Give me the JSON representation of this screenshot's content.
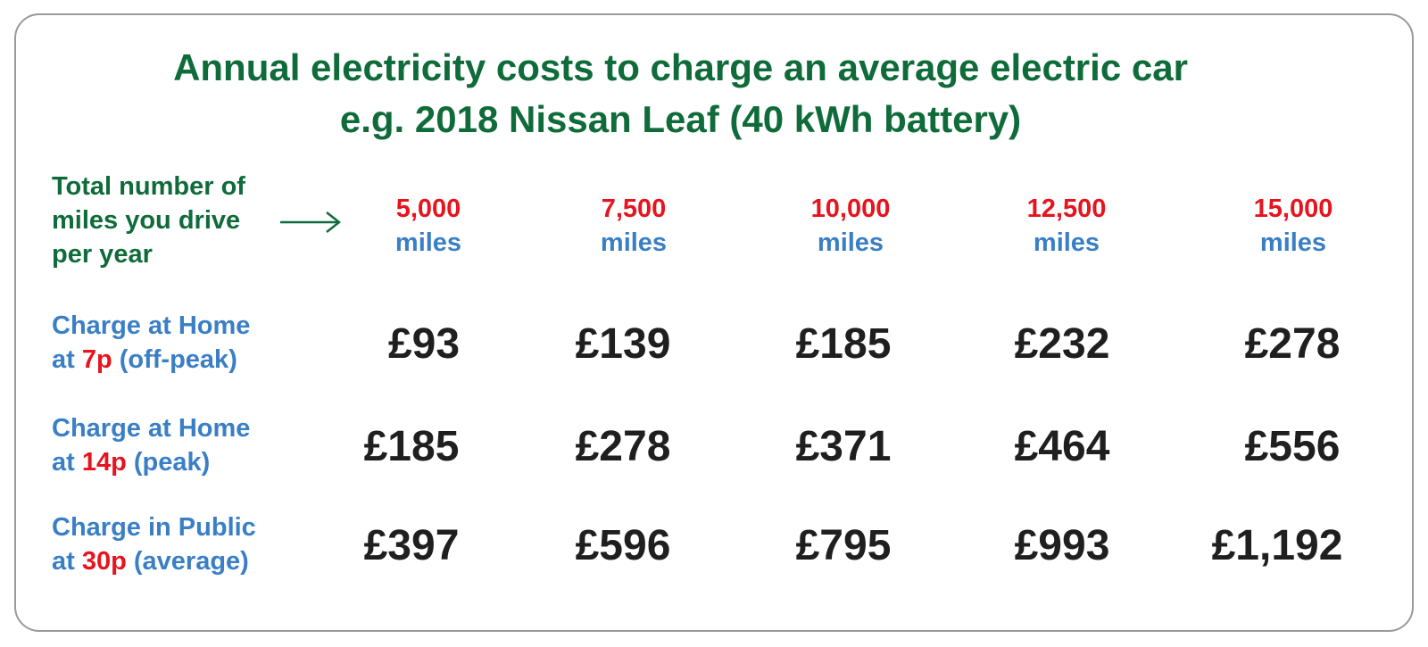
{
  "title": {
    "line1": "Annual electricity costs to charge an average electric car",
    "line2": "e.g. 2018 Nissan Leaf (40 kWh battery)"
  },
  "header_label": {
    "line1": "Total number of",
    "line2": "miles you drive",
    "line3": "per year"
  },
  "columns": [
    {
      "miles": "5,000",
      "unit": "miles"
    },
    {
      "miles": "7,500",
      "unit": "miles"
    },
    {
      "miles": "10,000",
      "unit": "miles"
    },
    {
      "miles": "12,500",
      "unit": "miles"
    },
    {
      "miles": "15,000",
      "unit": "miles"
    }
  ],
  "rows": [
    {
      "label_line1": "Charge at Home",
      "label_prefix": "at ",
      "rate": "7p",
      "label_suffix": " (off-peak)",
      "costs": [
        "£93",
        "£139",
        "£185",
        "£232",
        "£278"
      ]
    },
    {
      "label_line1": "Charge at Home",
      "label_prefix": "at ",
      "rate": "14p",
      "label_suffix": " (peak)",
      "costs": [
        "£185",
        "£278",
        "£371",
        "£464",
        "£556"
      ]
    },
    {
      "label_line1": "Charge in Public",
      "label_prefix": "at ",
      "rate": "30p",
      "label_suffix": " (average)",
      "costs": [
        "£397",
        "£596",
        "£795",
        "£993",
        "£1,192"
      ]
    }
  ],
  "colors": {
    "title": "#0f6b3a",
    "label": "#3a7fc6",
    "highlight": "#e6141e",
    "value": "#1f1f1f",
    "border": "#9a9a9a"
  }
}
